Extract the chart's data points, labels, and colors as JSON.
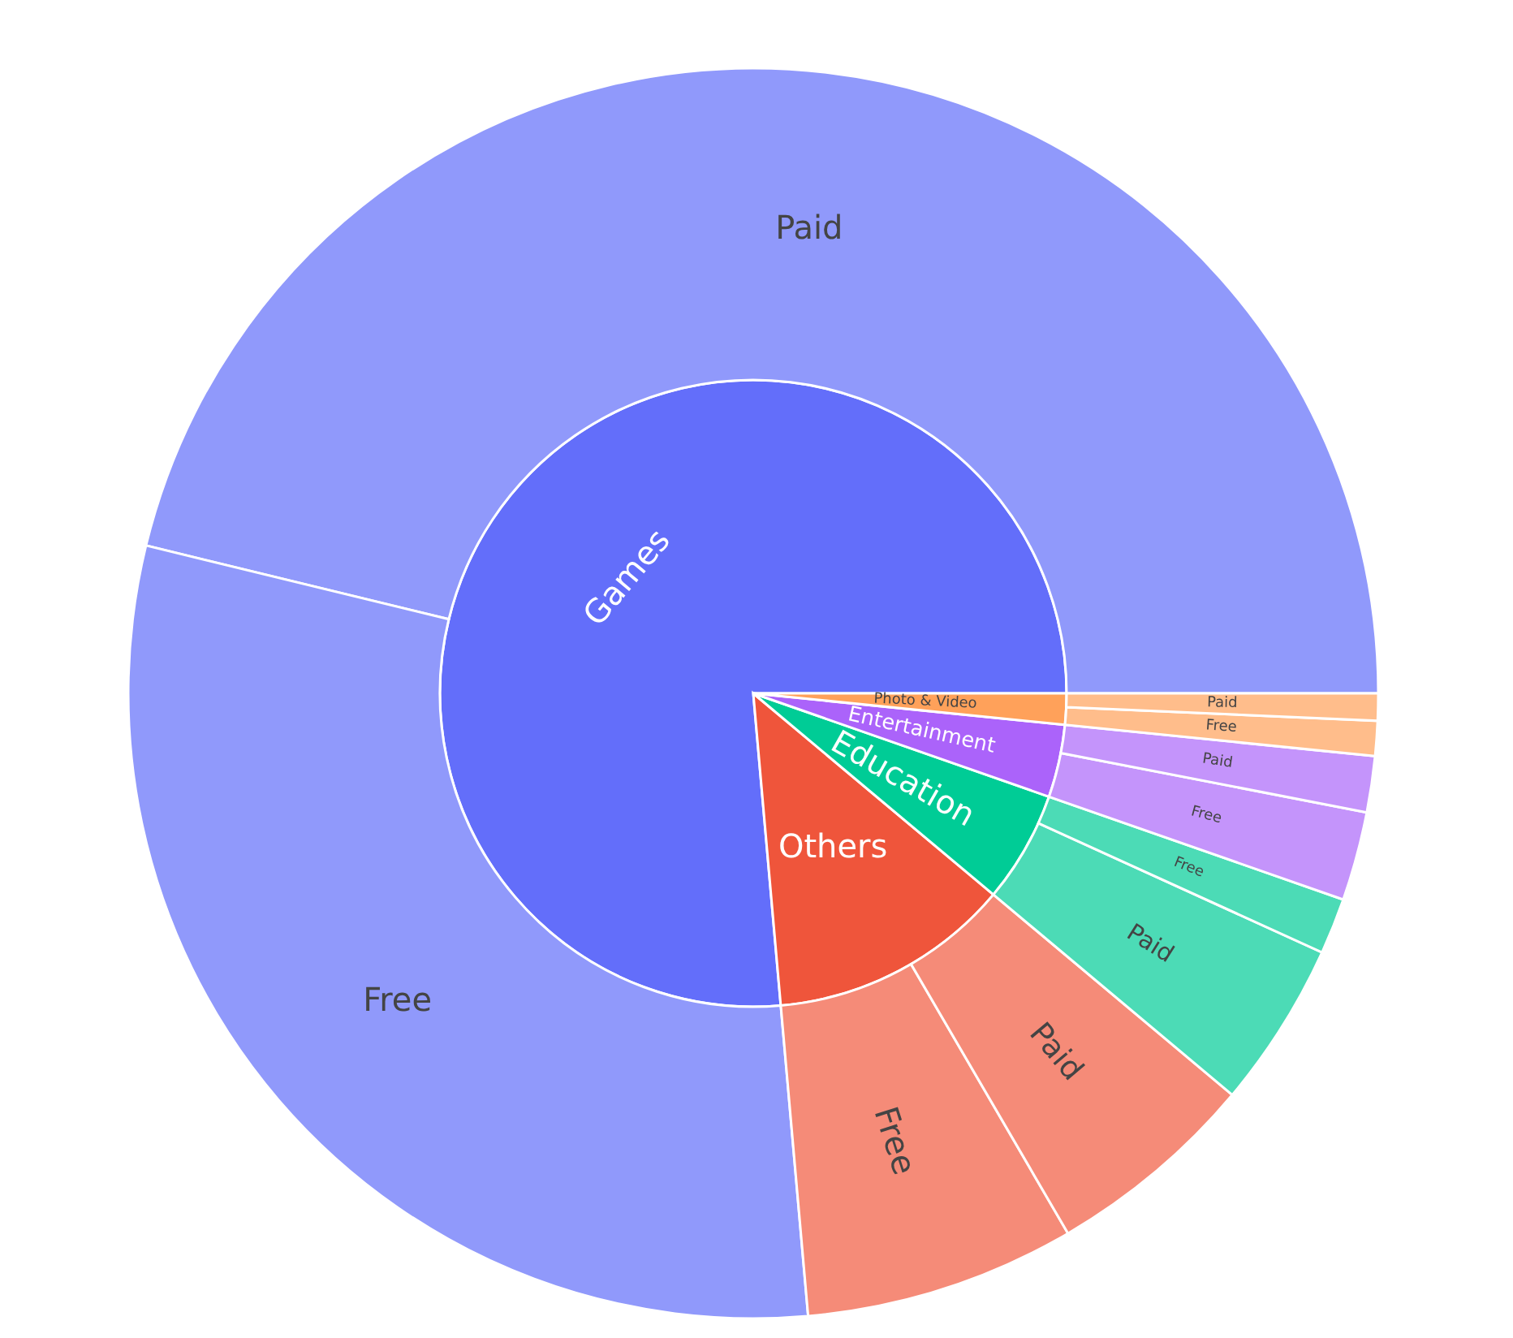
{
  "chart_data": [
    {
      "type": "pie",
      "categories": [
        "Games",
        "Others",
        "Education",
        "Entertainment",
        "Photo & Video"
      ],
      "values": [
        76.4,
        12.5,
        5.75,
        3.75,
        1.6
      ],
      "colors": [
        "#636efa",
        "#ef553b",
        "#00cc96",
        "#ab63fa",
        "#ffa15a"
      ]
    },
    {
      "type": "donut",
      "categories": [
        "Paid",
        "Free",
        "Free",
        "Paid",
        "Paid",
        "Free",
        "Free",
        "Paid",
        "Free",
        "Paid"
      ],
      "values": [
        46.2,
        30.2,
        7.0,
        5.5,
        4.3,
        1.45,
        2.3,
        1.45,
        0.9,
        0.7
      ],
      "colors": [
        "#9099fb",
        "#9099fb",
        "#f58b78",
        "#f58b78",
        "#4cdbb6",
        "#4cdbb6",
        "#c494fb",
        "#c494fb",
        "#ffbd8b",
        "#ffbd8b"
      ]
    }
  ]
}
